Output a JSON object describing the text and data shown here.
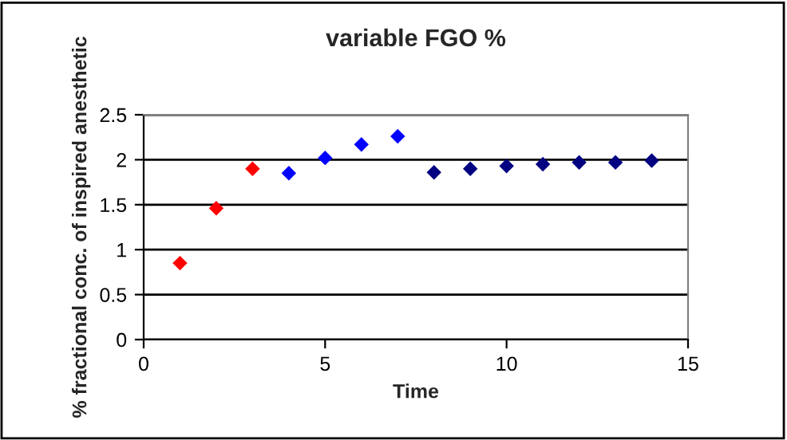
{
  "chart_data": {
    "type": "scatter",
    "title": "variable FGO %",
    "xlabel": "Time",
    "ylabel": "% fractional conc. of inspired anesthetic",
    "series": [
      {
        "color": "#ff0000",
        "x": [
          1,
          2,
          3
        ],
        "values": [
          0.85,
          1.46,
          1.9
        ]
      },
      {
        "color": "#0000ff",
        "x": [
          4,
          5,
          6,
          7
        ],
        "values": [
          1.85,
          2.02,
          2.17,
          2.26
        ]
      },
      {
        "color": "#000080",
        "x": [
          8,
          9,
          10,
          11,
          12,
          13,
          14
        ],
        "values": [
          1.86,
          1.9,
          1.93,
          1.95,
          1.97,
          1.97,
          1.99
        ]
      }
    ],
    "xlim": [
      0,
      15
    ],
    "xticks": [
      0,
      5,
      10,
      15
    ],
    "ylim": [
      0,
      2.5
    ],
    "yticks": [
      0,
      0.5,
      1,
      1.5,
      2,
      2.5
    ],
    "grid": "y",
    "marker": "diamond",
    "legend": false
  }
}
